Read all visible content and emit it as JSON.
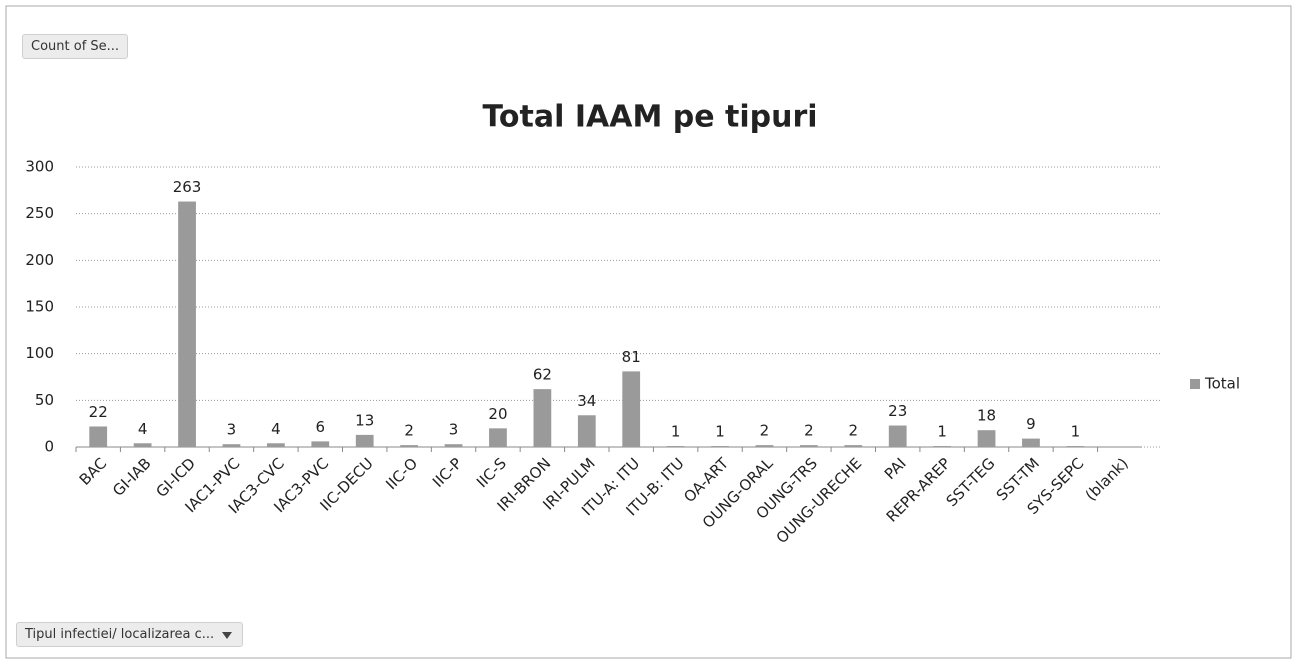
{
  "buttons": {
    "value_field": "Count of Se...",
    "axis_field": "Tipul infectiei/ localizarea c..."
  },
  "chart_data": {
    "type": "bar",
    "title": "Total IAAM pe tipuri",
    "categories": [
      "BAC",
      "GI-IAB",
      "GI-ICD",
      "IAC1-PVC",
      "IAC3-CVC",
      "IAC3-PVC",
      "IIC-DECU",
      "IIC-O",
      "IIC-P",
      "IIC-S",
      "IRI-BRON",
      "IRI-PULM",
      "ITU-A: ITU",
      "ITU-B: ITU",
      "OA-ART",
      "OUNG-ORAL",
      "OUNG-TRS",
      "OUNG-URECHE",
      "PAI",
      "REPR-AREP",
      "SST-TEG",
      "SST-TM",
      "SYS-SEPC",
      "(blank)"
    ],
    "series": [
      {
        "name": "Total",
        "color": "#9a9a9a",
        "values": [
          22,
          4,
          263,
          3,
          4,
          6,
          13,
          2,
          3,
          20,
          62,
          34,
          81,
          1,
          1,
          2,
          2,
          2,
          23,
          1,
          18,
          9,
          1,
          null
        ]
      }
    ],
    "ylim": [
      0,
      300
    ],
    "yticks": [
      0,
      50,
      100,
      150,
      200,
      250,
      300
    ],
    "grid": true,
    "legend": "right"
  }
}
